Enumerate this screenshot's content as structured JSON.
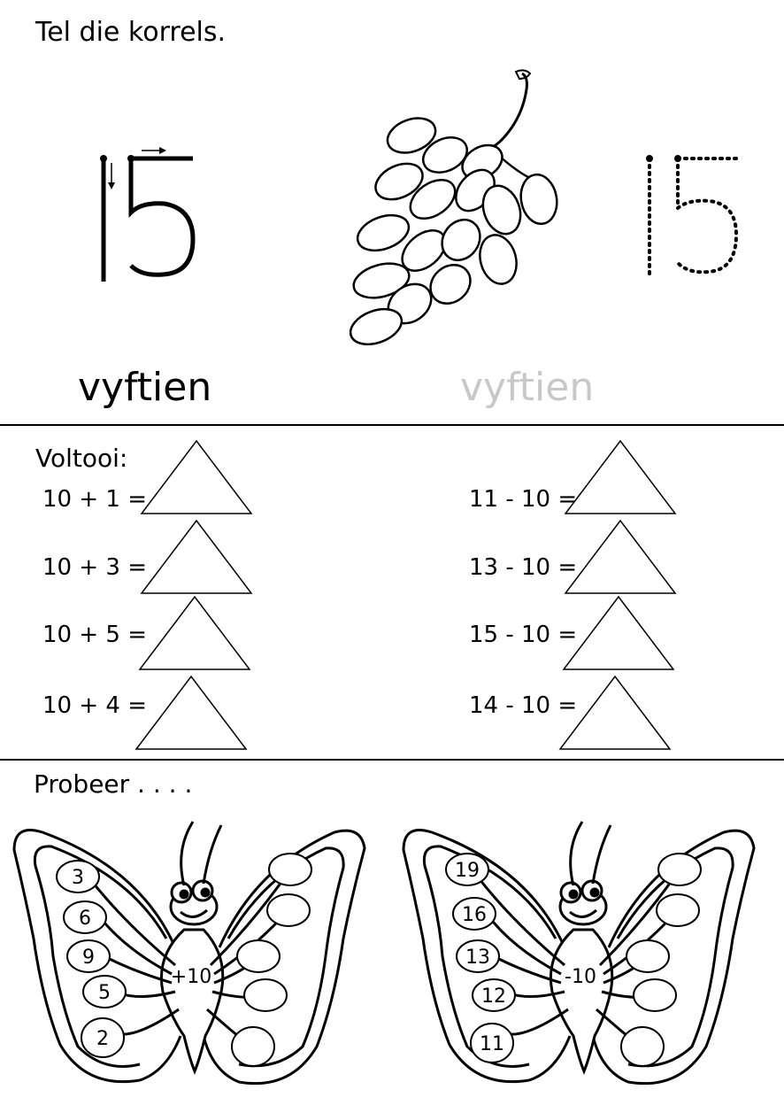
{
  "section1": {
    "title": "Tel die korrels.",
    "number": "15",
    "word": "vyftien",
    "traced_number": "15",
    "traced_word": "vyftien"
  },
  "section2": {
    "title": "Voltooi:",
    "left": [
      "10 + 1 =",
      "10 + 3 =",
      "10 + 5 =",
      "10 + 4 ="
    ],
    "right": [
      "11 - 10 =",
      "13 - 10 =",
      "15 - 10 =",
      "14 - 10 ="
    ]
  },
  "section3": {
    "title": "Probeer . . . .",
    "butterfly_left": {
      "operation": "+10",
      "numbers": [
        "3",
        "6",
        "9",
        "5",
        "2"
      ]
    },
    "butterfly_right": {
      "operation": "-10",
      "numbers": [
        "19",
        "16",
        "13",
        "12",
        "11"
      ]
    }
  }
}
